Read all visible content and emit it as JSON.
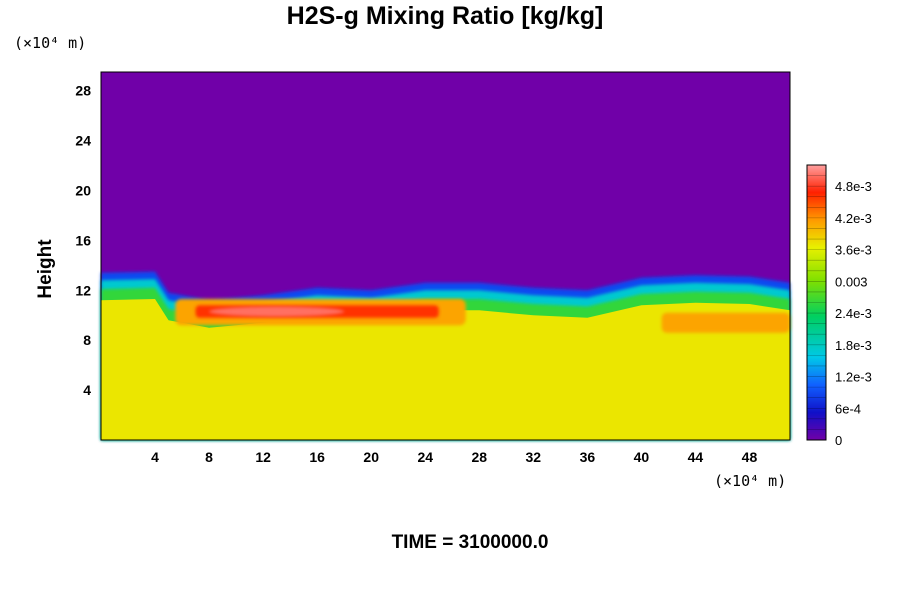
{
  "chart_data": {
    "type": "heatmap",
    "title": "H2S-g Mixing Ratio [kg/kg]",
    "ylabel": "Height",
    "xlabel": "",
    "x_unit": "(×10⁴ m)",
    "y_unit": "(×10⁴ m)",
    "xlim": [
      0,
      51
    ],
    "ylim": [
      0,
      29.5
    ],
    "x_ticks": [
      4,
      8,
      12,
      16,
      20,
      24,
      28,
      32,
      36,
      40,
      44,
      48
    ],
    "y_ticks": [
      4,
      8,
      12,
      16,
      20,
      24,
      28
    ],
    "colorbar": {
      "range": [
        0,
        0.0052
      ],
      "tick_labels": [
        "4.8e-3",
        "4.2e-3",
        "3.6e-3",
        "0.003",
        "2.4e-3",
        "1.8e-3",
        "1.2e-3",
        "6e-4",
        "0"
      ],
      "tick_values": [
        0.0048,
        0.0042,
        0.0036,
        0.003,
        0.0024,
        0.0018,
        0.0012,
        0.0006,
        0
      ]
    },
    "field": {
      "lower_layer_value": 0.0037,
      "upper_layer_value": 0,
      "interface_height_profile": [
        {
          "x": 0,
          "y": 13.4
        },
        {
          "x": 4,
          "y": 13.5
        },
        {
          "x": 5,
          "y": 11.8
        },
        {
          "x": 8,
          "y": 11.2
        },
        {
          "x": 12,
          "y": 11.6
        },
        {
          "x": 16,
          "y": 12.2
        },
        {
          "x": 20,
          "y": 12.0
        },
        {
          "x": 24,
          "y": 12.6
        },
        {
          "x": 28,
          "y": 12.6
        },
        {
          "x": 32,
          "y": 12.2
        },
        {
          "x": 36,
          "y": 12.0
        },
        {
          "x": 40,
          "y": 13.0
        },
        {
          "x": 44,
          "y": 13.2
        },
        {
          "x": 48,
          "y": 13.1
        },
        {
          "x": 51,
          "y": 12.6
        }
      ],
      "peak_region": {
        "x": [
          7,
          25
        ],
        "y": [
          9.8,
          10.8
        ],
        "value": 0.005
      }
    }
  },
  "footer": {
    "time_label": "TIME = 3100000.0"
  }
}
